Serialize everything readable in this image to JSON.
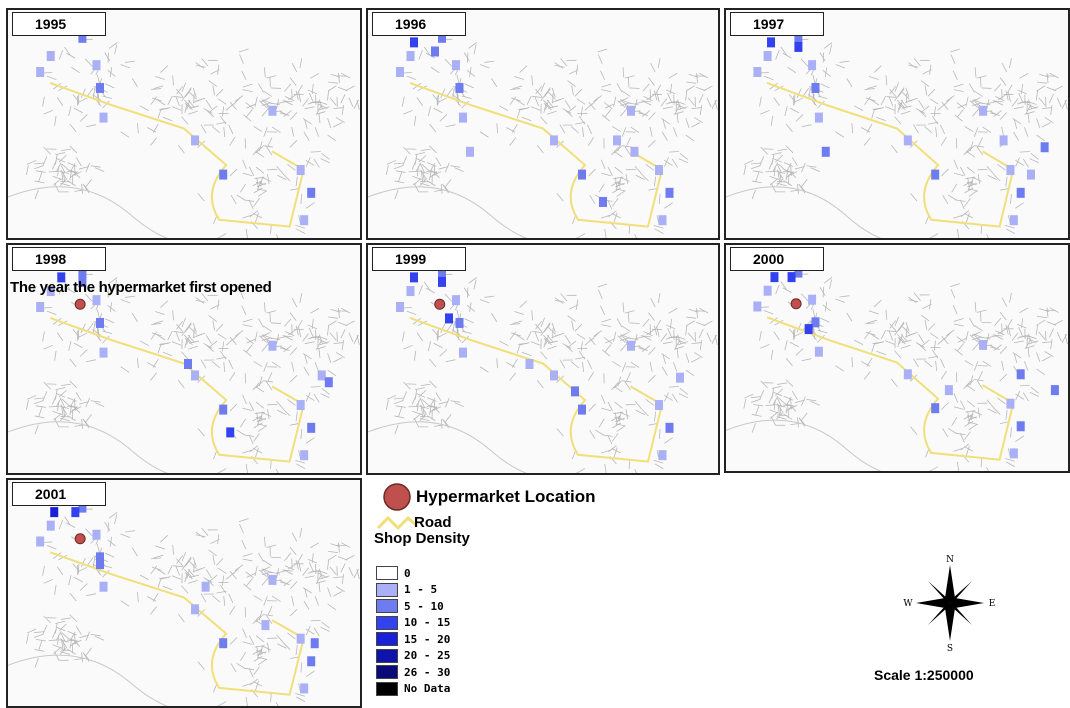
{
  "panels": [
    {
      "year": "1995",
      "hypermarket": false
    },
    {
      "year": "1996",
      "hypermarket": false
    },
    {
      "year": "1997",
      "hypermarket": false
    },
    {
      "year": "1998",
      "hypermarket": true
    },
    {
      "year": "1999",
      "hypermarket": true
    },
    {
      "year": "2000",
      "hypermarket": true
    },
    {
      "year": "2001",
      "hypermarket": true
    }
  ],
  "annotation": "The year the hypermarket first opened",
  "legend": {
    "hypermarket_label": "Hypermarket Location",
    "road_label": "Road",
    "density_title": "Shop Density",
    "classes": [
      {
        "label": "0",
        "color": "#ffffff"
      },
      {
        "label": "1 - 5",
        "color": "#aab0f6"
      },
      {
        "label": "5 - 10",
        "color": "#6f7cf0"
      },
      {
        "label": "10 - 15",
        "color": "#3342ee"
      },
      {
        "label": "15 - 20",
        "color": "#1820d8"
      },
      {
        "label": "20 - 25",
        "color": "#0f14a8"
      },
      {
        "label": "26 - 30",
        "color": "#0a0a78"
      },
      {
        "label": "No Data",
        "color": "#000000"
      }
    ]
  },
  "colors": {
    "road": "#f0df7a",
    "hypermarket": "#c0504d",
    "streets": "#b8b8b8"
  },
  "compass": {
    "n": "N",
    "s": "S",
    "e": "E",
    "w": "W"
  },
  "scale": "Scale 1:250000"
}
